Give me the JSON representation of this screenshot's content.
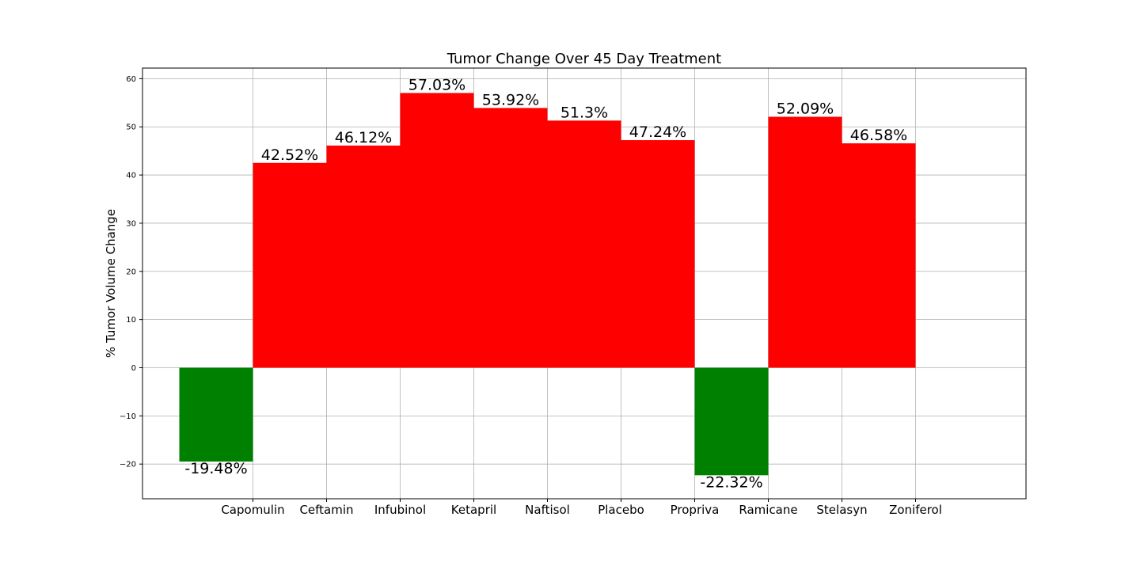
{
  "chart_data": {
    "type": "bar",
    "title": "Tumor Change Over 45 Day Treatment",
    "ylabel": "% Tumor Volume Change",
    "xlabel": "",
    "categories": [
      "Capomulin",
      "Ceftamin",
      "Infubinol",
      "Ketapril",
      "Naftisol",
      "Placebo",
      "Propriva",
      "Ramicane",
      "Stelasyn",
      "Zoniferol"
    ],
    "values": [
      -19.48,
      42.52,
      46.12,
      57.03,
      53.92,
      51.3,
      47.24,
      -22.32,
      52.09,
      46.58
    ],
    "data_labels": [
      "-19.48%",
      "42.52%",
      "46.12%",
      "57.03%",
      "53.92%",
      "51.3%",
      "47.24%",
      "-22.32%",
      "52.09%",
      "46.58%"
    ],
    "ylim": [
      -27.2,
      62.2
    ],
    "yticks": [
      -20,
      -10,
      0,
      10,
      20,
      30,
      40,
      50,
      60
    ],
    "ytick_labels": [
      "−20",
      "−10",
      "0",
      "10",
      "20",
      "30",
      "40",
      "50",
      "60"
    ],
    "grid": true,
    "colors": {
      "positive": "#ff0000",
      "negative": "#008000"
    }
  }
}
